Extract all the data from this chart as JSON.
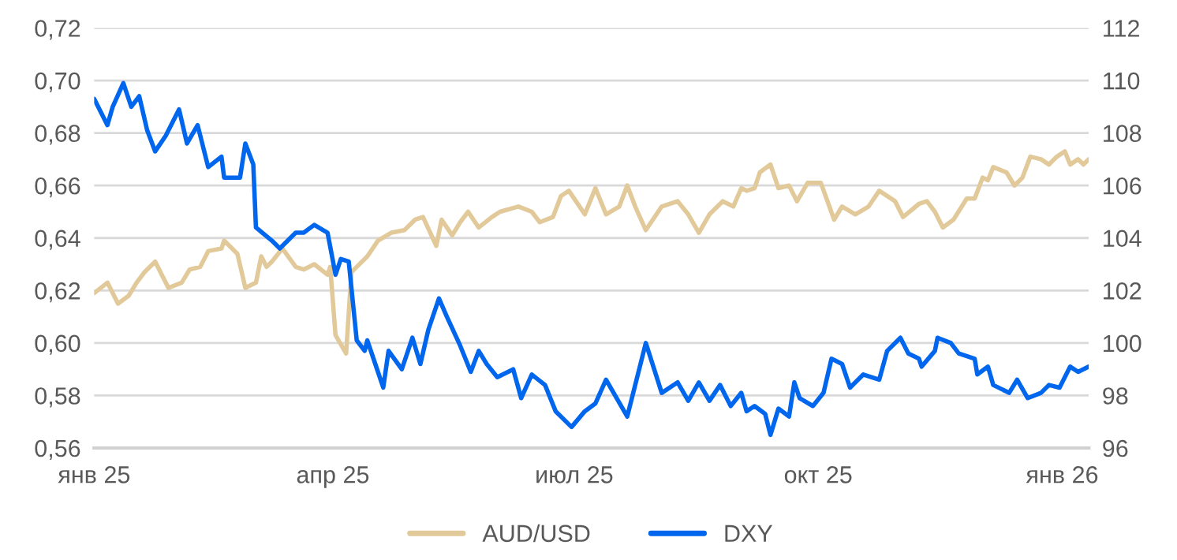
{
  "chart_data": {
    "type": "line",
    "series": [
      {
        "name": "AUD/USD",
        "color": "#e2c99a",
        "x": [
          "2025-01-01",
          "2025-01-06",
          "2025-01-10",
          "2025-01-14",
          "2025-01-17",
          "2025-01-20",
          "2025-01-24",
          "2025-01-29",
          "2025-02-03",
          "2025-02-06",
          "2025-02-10",
          "2025-02-13",
          "2025-02-18",
          "2025-02-19",
          "2025-02-24",
          "2025-02-27",
          "2025-03-03",
          "2025-03-05",
          "2025-03-07",
          "2025-03-09",
          "2025-03-13",
          "2025-03-18",
          "2025-03-21",
          "2025-03-25",
          "2025-03-30",
          "2025-03-31",
          "2025-04-02",
          "2025-04-06",
          "2025-04-08",
          "2025-04-10",
          "2025-04-14",
          "2025-04-18",
          "2025-04-23",
          "2025-04-28",
          "2025-05-02",
          "2025-05-05",
          "2025-05-10",
          "2025-05-12",
          "2025-05-16",
          "2025-05-19",
          "2025-05-22",
          "2025-05-26",
          "2025-05-31",
          "2025-06-03",
          "2025-06-10",
          "2025-06-15",
          "2025-06-18",
          "2025-06-23",
          "2025-06-26",
          "2025-06-29",
          "2025-07-05",
          "2025-07-09",
          "2025-07-13",
          "2025-07-18",
          "2025-07-21",
          "2025-07-24",
          "2025-07-28",
          "2025-08-03",
          "2025-08-09",
          "2025-08-13",
          "2025-08-17",
          "2025-08-21",
          "2025-08-26",
          "2025-08-30",
          "2025-09-02",
          "2025-09-04",
          "2025-09-07",
          "2025-09-09",
          "2025-09-13",
          "2025-09-16",
          "2025-09-20",
          "2025-09-23",
          "2025-09-27",
          "2025-10-02",
          "2025-10-07",
          "2025-10-10",
          "2025-10-15",
          "2025-10-20",
          "2025-10-24",
          "2025-10-30",
          "2025-11-02",
          "2025-11-08",
          "2025-11-11",
          "2025-11-14",
          "2025-11-17",
          "2025-11-21",
          "2025-11-26",
          "2025-11-29",
          "2025-12-02",
          "2025-12-04",
          "2025-12-06",
          "2025-12-11",
          "2025-12-14",
          "2025-12-17",
          "2025-12-20",
          "2025-12-24",
          "2025-12-27",
          "2025-12-30",
          "2026-01-02",
          "2026-01-04",
          "2026-01-07",
          "2026-01-09",
          "2026-01-11"
        ],
        "values": [
          0.619,
          0.623,
          0.615,
          0.618,
          0.623,
          0.627,
          0.631,
          0.621,
          0.623,
          0.628,
          0.629,
          0.635,
          0.636,
          0.639,
          0.634,
          0.621,
          0.623,
          0.633,
          0.629,
          0.631,
          0.636,
          0.629,
          0.628,
          0.63,
          0.626,
          0.629,
          0.603,
          0.596,
          0.627,
          0.629,
          0.633,
          0.639,
          0.642,
          0.643,
          0.647,
          0.648,
          0.637,
          0.647,
          0.641,
          0.646,
          0.65,
          0.644,
          0.648,
          0.65,
          0.652,
          0.65,
          0.646,
          0.648,
          0.656,
          0.658,
          0.649,
          0.659,
          0.649,
          0.652,
          0.66,
          0.652,
          0.643,
          0.652,
          0.654,
          0.649,
          0.642,
          0.649,
          0.654,
          0.652,
          0.659,
          0.658,
          0.659,
          0.665,
          0.668,
          0.659,
          0.66,
          0.654,
          0.661,
          0.661,
          0.647,
          0.652,
          0.649,
          0.652,
          0.658,
          0.654,
          0.648,
          0.653,
          0.654,
          0.65,
          0.644,
          0.647,
          0.655,
          0.655,
          0.663,
          0.662,
          0.667,
          0.665,
          0.66,
          0.663,
          0.671,
          0.67,
          0.668,
          0.671,
          0.673,
          0.668,
          0.67,
          0.668,
          0.67
        ]
      },
      {
        "name": "DXY",
        "color": "#0066ee",
        "axis": "y2",
        "x": [
          "2025-01-01",
          "2025-01-06",
          "2025-01-08",
          "2025-01-12",
          "2025-01-15",
          "2025-01-18",
          "2025-01-21",
          "2025-01-24",
          "2025-01-28",
          "2025-02-02",
          "2025-02-05",
          "2025-02-09",
          "2025-02-13",
          "2025-02-18",
          "2025-02-19",
          "2025-02-25",
          "2025-02-27",
          "2025-03-02",
          "2025-03-03",
          "2025-03-09",
          "2025-03-12",
          "2025-03-18",
          "2025-03-21",
          "2025-03-25",
          "2025-03-30",
          "2025-04-02",
          "2025-04-04",
          "2025-04-07",
          "2025-04-10",
          "2025-04-13",
          "2025-04-14",
          "2025-04-17",
          "2025-04-20",
          "2025-04-22",
          "2025-04-27",
          "2025-05-01",
          "2025-05-04",
          "2025-05-07",
          "2025-05-11",
          "2025-05-14",
          "2025-05-19",
          "2025-05-23",
          "2025-05-26",
          "2025-05-29",
          "2025-06-02",
          "2025-06-08",
          "2025-06-11",
          "2025-06-15",
          "2025-06-20",
          "2025-06-24",
          "2025-06-30",
          "2025-07-05",
          "2025-07-09",
          "2025-07-13",
          "2025-07-21",
          "2025-07-28",
          "2025-08-03",
          "2025-08-09",
          "2025-08-13",
          "2025-08-17",
          "2025-08-21",
          "2025-08-25",
          "2025-08-29",
          "2025-09-02",
          "2025-09-04",
          "2025-09-07",
          "2025-09-11",
          "2025-09-13",
          "2025-09-16",
          "2025-09-20",
          "2025-09-22",
          "2025-09-24",
          "2025-09-29",
          "2025-10-03",
          "2025-10-06",
          "2025-10-10",
          "2025-10-13",
          "2025-10-18",
          "2025-10-24",
          "2025-10-27",
          "2025-11-01",
          "2025-11-04",
          "2025-11-08",
          "2025-11-09",
          "2025-11-14",
          "2025-11-15",
          "2025-11-20",
          "2025-11-23",
          "2025-11-29",
          "2025-11-30",
          "2025-12-04",
          "2025-12-06",
          "2025-12-12",
          "2025-12-15",
          "2025-12-19",
          "2025-12-24",
          "2025-12-27",
          "2025-12-31",
          "2026-01-04",
          "2026-01-07",
          "2026-01-11"
        ],
        "values": [
          109.3,
          108.3,
          109.0,
          109.9,
          109.0,
          109.4,
          108.1,
          107.3,
          107.9,
          108.9,
          107.6,
          108.3,
          106.7,
          107.1,
          106.3,
          106.3,
          107.6,
          106.8,
          104.4,
          103.9,
          103.6,
          104.2,
          104.2,
          104.5,
          104.2,
          102.6,
          103.2,
          103.1,
          100.1,
          99.7,
          100.1,
          99.2,
          98.3,
          99.7,
          99.0,
          100.2,
          99.2,
          100.5,
          101.7,
          101.0,
          99.9,
          98.9,
          99.7,
          99.2,
          98.7,
          99.0,
          97.9,
          98.8,
          98.4,
          97.4,
          96.8,
          97.4,
          97.7,
          98.6,
          97.2,
          100.0,
          98.1,
          98.5,
          97.8,
          98.5,
          97.8,
          98.4,
          97.6,
          98.1,
          97.4,
          97.6,
          97.3,
          96.5,
          97.5,
          97.2,
          98.5,
          97.9,
          97.6,
          98.1,
          99.4,
          99.2,
          98.3,
          98.8,
          98.6,
          99.7,
          100.2,
          99.6,
          99.4,
          99.1,
          99.7,
          100.2,
          100.0,
          99.6,
          99.4,
          98.8,
          99.1,
          98.4,
          98.1,
          98.6,
          97.9,
          98.1,
          98.4,
          98.3,
          99.1,
          98.9,
          99.1
        ]
      }
    ],
    "xlim": [
      "2025-01-01",
      "2026-01-11"
    ],
    "xticks": [
      {
        "value": "2025-01-01",
        "label": "янв 25"
      },
      {
        "value": "2025-04-01",
        "label": "апр 25"
      },
      {
        "value": "2025-07-01",
        "label": "июл 25"
      },
      {
        "value": "2025-10-01",
        "label": "окт 25"
      },
      {
        "value": "2026-01-01",
        "label": "янв 26"
      }
    ],
    "ylim": [
      0.56,
      0.72
    ],
    "yticks": [
      {
        "value": 0.56,
        "label": "0,56"
      },
      {
        "value": 0.58,
        "label": "0,58"
      },
      {
        "value": 0.6,
        "label": "0,60"
      },
      {
        "value": 0.62,
        "label": "0,62"
      },
      {
        "value": 0.64,
        "label": "0,64"
      },
      {
        "value": 0.66,
        "label": "0,66"
      },
      {
        "value": 0.68,
        "label": "0,68"
      },
      {
        "value": 0.7,
        "label": "0,70"
      },
      {
        "value": 0.72,
        "label": "0,72"
      }
    ],
    "y2lim": [
      96,
      112
    ],
    "y2ticks": [
      96,
      98,
      100,
      102,
      104,
      106,
      108,
      110,
      112
    ],
    "grid": "y",
    "legend": "bottom",
    "line_style": "solid",
    "marker": "none"
  }
}
